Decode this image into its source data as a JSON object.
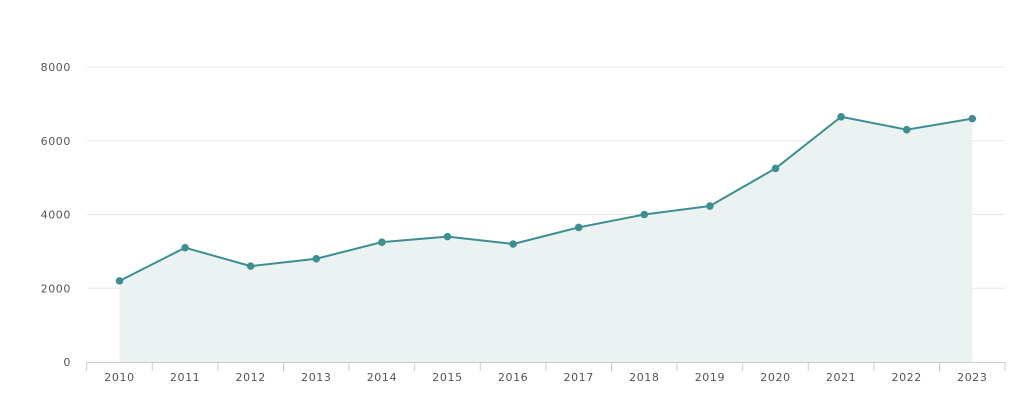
{
  "chart_data": {
    "type": "area",
    "title": "",
    "xlabel": "",
    "ylabel": "",
    "categories": [
      "2010",
      "2011",
      "2012",
      "2013",
      "2014",
      "2015",
      "2016",
      "2017",
      "2018",
      "2019",
      "2020",
      "2021",
      "2022",
      "2023"
    ],
    "series": [
      {
        "values": [
          2200,
          3100,
          2600,
          2800,
          3250,
          3400,
          3200,
          3650,
          4000,
          4230,
          5250,
          6650,
          6300,
          6600
        ]
      }
    ],
    "ylim": [
      0,
      8000
    ],
    "yticks": [
      "0",
      "2000",
      "4000",
      "6000",
      "8000"
    ],
    "grid": true,
    "legend": "none",
    "colors": {
      "line": "#3d8f91",
      "area": "#eaf3f2",
      "grid": "#e6e6e6",
      "axis": "#cccccc"
    }
  }
}
